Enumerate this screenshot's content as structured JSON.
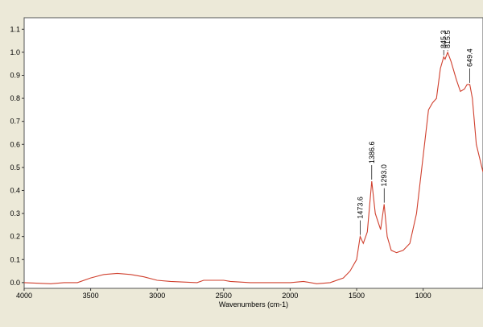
{
  "chart_data": {
    "type": "line",
    "x_label": "Wavenumbers (cm-1)",
    "xlim": [
      4000,
      550
    ],
    "xticks": [
      4000,
      3500,
      3000,
      2500,
      2000,
      1500,
      1000
    ],
    "ylim": [
      -0.025,
      1.15
    ],
    "yticks": [
      {
        "value": 0,
        "label": "0.0"
      },
      0.1,
      0.2,
      0.3,
      0.4,
      0.5,
      0.6,
      0.7,
      0.8,
      0.9,
      {
        "value": 1,
        "label": "1.0"
      },
      1.1
    ],
    "series": [
      {
        "color": "#d0402e",
        "x": [
          4000,
          3800,
          3700,
          3600,
          3500,
          3400,
          3300,
          3200,
          3100,
          3000,
          2900,
          2700,
          2650,
          2500,
          2450,
          2300,
          2000,
          1900,
          1800,
          1700,
          1600,
          1550,
          1500,
          1473.6,
          1450,
          1420,
          1386.6,
          1360,
          1320,
          1293,
          1270,
          1240,
          1200,
          1150,
          1100,
          1050,
          1000,
          960,
          930,
          900,
          870,
          845.3,
          835,
          815.5,
          790,
          750,
          720,
          690,
          670,
          649.4,
          630,
          600,
          550
        ],
        "values": [
          0.0,
          -0.005,
          0.0,
          0.0,
          0.02,
          0.035,
          0.04,
          0.035,
          0.025,
          0.01,
          0.005,
          0.0,
          0.01,
          0.01,
          0.005,
          0.0,
          0.0,
          0.005,
          -0.005,
          0.0,
          0.02,
          0.05,
          0.1,
          0.2,
          0.17,
          0.22,
          0.44,
          0.3,
          0.23,
          0.34,
          0.2,
          0.14,
          0.13,
          0.14,
          0.17,
          0.3,
          0.55,
          0.75,
          0.78,
          0.8,
          0.93,
          0.98,
          0.97,
          1.0,
          0.96,
          0.88,
          0.83,
          0.84,
          0.86,
          0.86,
          0.8,
          0.6,
          0.48
        ]
      }
    ],
    "annotations": [
      {
        "x": 1473.6,
        "y": 0.2,
        "label": "1473.6"
      },
      {
        "x": 1386.6,
        "y": 0.44,
        "label": "1386.6"
      },
      {
        "x": 1293.0,
        "y": 0.34,
        "label": "1293.0"
      },
      {
        "x": 845.3,
        "y": 0.98,
        "label": "845.3"
      },
      {
        "x": 815.5,
        "y": 1.0,
        "label": "815.5"
      },
      {
        "x": 649.4,
        "y": 0.86,
        "label": "649.4"
      }
    ]
  }
}
